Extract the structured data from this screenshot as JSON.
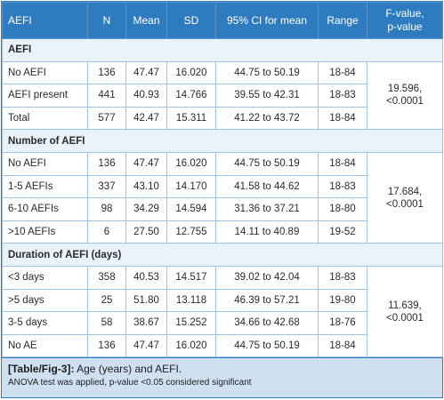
{
  "headers": [
    "AEFI",
    "N",
    "Mean",
    "SD",
    "95% CI for mean",
    "Range",
    "F-value,\np-value"
  ],
  "sections": [
    {
      "title": "AEFI",
      "fvalue": "19.596,\n<0.0001",
      "rows": [
        [
          "No AEFI",
          "136",
          "47.47",
          "16.020",
          "44.75 to 50.19",
          "18-84"
        ],
        [
          "AEFI present",
          "441",
          "40.93",
          "14.766",
          "39.55 to 42.31",
          "18-83"
        ],
        [
          "Total",
          "577",
          "42.47",
          "15.311",
          "41.22 to 43.72",
          "18-84"
        ]
      ]
    },
    {
      "title": "Number of AEFI",
      "fvalue": "17.684,\n<0.0001",
      "rows": [
        [
          "No AEFI",
          "136",
          "47.47",
          "16.020",
          "44.75 to 50.19",
          "18-84"
        ],
        [
          "1-5 AEFIs",
          "337",
          "43.10",
          "14.170",
          "41.58 to 44.62",
          "18-83"
        ],
        [
          "6-10 AEFIs",
          "98",
          "34.29",
          "14.594",
          "31.36 to 37.21",
          "18-80"
        ],
        [
          ">10 AEFIs",
          "6",
          "27.50",
          "12.755",
          "14.11 to 40.89",
          "19-52"
        ]
      ]
    },
    {
      "title": "Duration of AEFI (days)",
      "fvalue": "11.639,\n<0.0001",
      "rows": [
        [
          "<3 days",
          "358",
          "40.53",
          "14.517",
          "39.02 to 42.04",
          "18-83"
        ],
        [
          ">5 days",
          "25",
          "51.80",
          "13.118",
          "46.39 to 57.21",
          "19-80"
        ],
        [
          "3-5 days",
          "58",
          "38.67",
          "15.252",
          "34.66 to 42.68",
          "18-76"
        ],
        [
          "No AE",
          "136",
          "47.47",
          "16.020",
          "44.75 to 50.19",
          "18-84"
        ]
      ]
    }
  ],
  "caption": {
    "label": "[Table/Fig-3]:",
    "text": "Age (years) and AEFI.",
    "note": "ANOVA test was applied, p-value <0.05 considered significant"
  }
}
